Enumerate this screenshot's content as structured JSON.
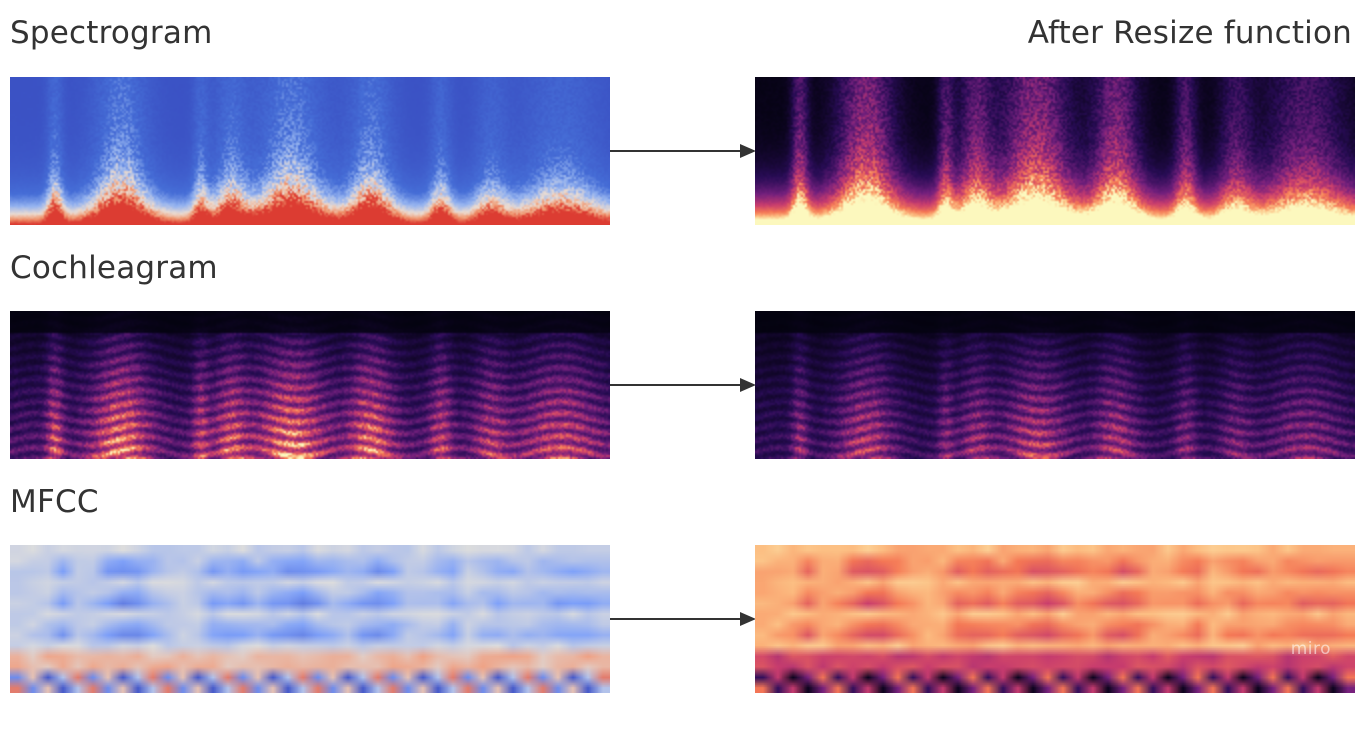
{
  "labels": {
    "spectrogram": "Spectrogram",
    "after_resize": "After Resize function",
    "cochleagram": "Cochleagram",
    "mfcc": "MFCC"
  },
  "watermark": "miro",
  "colors": {
    "text": "#333333",
    "arrow": "#333333"
  },
  "panels": [
    {
      "id": "spectrogram-original",
      "colormap": "coolwarm"
    },
    {
      "id": "spectrogram-resized",
      "colormap": "magma"
    },
    {
      "id": "cochleagram-original",
      "colormap": "magma"
    },
    {
      "id": "cochleagram-resized",
      "colormap": "magma"
    },
    {
      "id": "mfcc-original",
      "colormap": "coolwarm"
    },
    {
      "id": "mfcc-resized",
      "colormap": "magma"
    }
  ]
}
